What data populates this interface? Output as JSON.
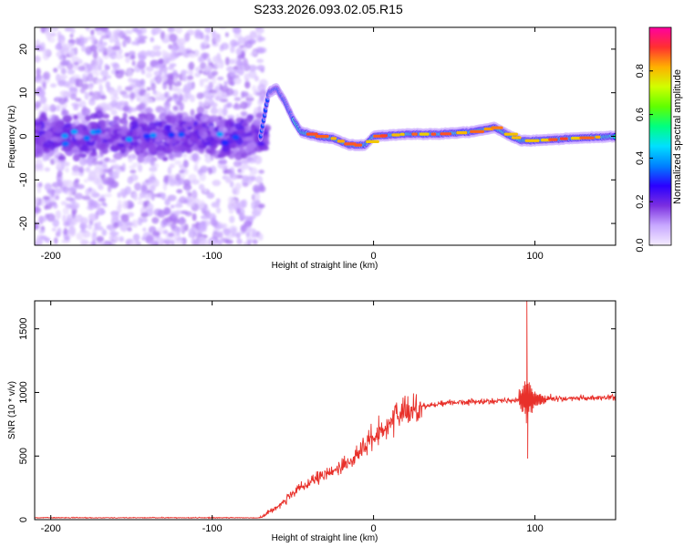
{
  "title": "S233.2026.093.02.05.R15",
  "chart_data": [
    {
      "type": "heatmap",
      "name": "spectrogram",
      "xlabel": "Height of straight line (km)",
      "ylabel": "Frequency (Hz)",
      "xlim": [
        -210,
        150
      ],
      "ylim": [
        -25,
        25
      ],
      "xticks": [
        -200,
        -100,
        0,
        100
      ],
      "yticks": [
        -20,
        -10,
        0,
        10,
        20
      ],
      "colorbar": {
        "label": "Normalized spectral amplitude",
        "range": [
          0,
          1
        ],
        "ticks": [
          0.0,
          0.2,
          0.4,
          0.6,
          0.8
        ],
        "tick_labels": [
          "0.0",
          "0.2",
          "0.4",
          "0.6",
          "0.8"
        ],
        "colors": [
          "#f4ecff",
          "#c8a8ff",
          "#7b2fe0",
          "#2a00ff",
          "#0080ff",
          "#00e0ff",
          "#00ff80",
          "#60ff00",
          "#d0ff00",
          "#ffb000",
          "#ff3030",
          "#ff00a0"
        ]
      },
      "ridge": [
        {
          "x": -210,
          "f": 0
        },
        {
          "x": -70,
          "f": 0
        },
        {
          "x": -65,
          "f": 10
        },
        {
          "x": -60,
          "f": 11
        },
        {
          "x": -55,
          "f": 8
        },
        {
          "x": -50,
          "f": 4
        },
        {
          "x": -45,
          "f": 1
        },
        {
          "x": -40,
          "f": 0.5
        },
        {
          "x": -35,
          "f": 0
        },
        {
          "x": -25,
          "f": -0.5
        },
        {
          "x": -15,
          "f": -2
        },
        {
          "x": -5,
          "f": -2
        },
        {
          "x": 0,
          "f": 0
        },
        {
          "x": 20,
          "f": 0.5
        },
        {
          "x": 40,
          "f": 0.5
        },
        {
          "x": 60,
          "f": 1
        },
        {
          "x": 75,
          "f": 2
        },
        {
          "x": 85,
          "f": 0
        },
        {
          "x": 92,
          "f": -1
        },
        {
          "x": 100,
          "f": -1
        },
        {
          "x": 120,
          "f": -0.5
        },
        {
          "x": 150,
          "f": 0
        }
      ]
    },
    {
      "type": "line",
      "name": "snr",
      "xlabel": "Height of straight line (km)",
      "ylabel": "SNR (10 * v/v)",
      "xlim": [
        -210,
        150
      ],
      "ylim": [
        0,
        1720
      ],
      "xticks": [
        -200,
        -100,
        0,
        100
      ],
      "yticks": [
        0,
        500,
        1000,
        1500
      ],
      "color": "#e8302a",
      "envelope": [
        {
          "x": -210,
          "y": 15
        },
        {
          "x": -70,
          "y": 15
        },
        {
          "x": -60,
          "y": 100
        },
        {
          "x": -45,
          "y": 250
        },
        {
          "x": -30,
          "y": 350
        },
        {
          "x": -15,
          "y": 450
        },
        {
          "x": 0,
          "y": 650
        },
        {
          "x": 15,
          "y": 820
        },
        {
          "x": 30,
          "y": 890
        },
        {
          "x": 45,
          "y": 920
        },
        {
          "x": 70,
          "y": 930
        },
        {
          "x": 90,
          "y": 940
        },
        {
          "x": 110,
          "y": 950
        },
        {
          "x": 150,
          "y": 960
        }
      ],
      "spikes": [
        {
          "x": 95,
          "y": 1720
        },
        {
          "x": 95.5,
          "y": 480
        }
      ]
    }
  ]
}
